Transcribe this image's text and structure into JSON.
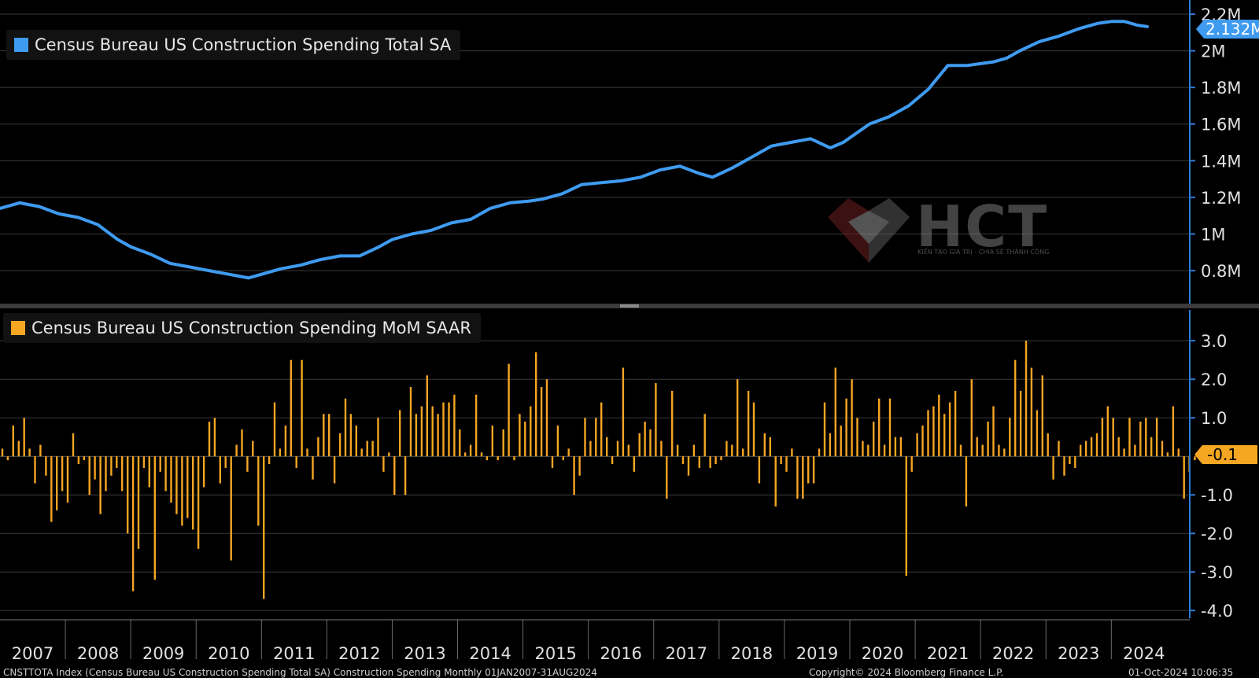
{
  "footer": {
    "left": "CNSTTOTA Index (Census Bureau US Construction Spending Total SA) Construction Spending  Monthly 01JAN2007-31AUG2024",
    "center": "Copyright© 2024 Bloomberg Finance L.P.",
    "right": "01-Oct-2024 10:06:35"
  },
  "watermark": {
    "text": "HCT",
    "tagline": "KIẾN TẠO GIÁ TRỊ - CHIA SẺ THÀNH CÔNG"
  },
  "colors": {
    "background": "#000000",
    "line": "#3f9bf0",
    "bar": "#f5a623",
    "grid": "#3a3a3a",
    "axis": "#2e7bd6"
  },
  "chart_data": [
    {
      "type": "line",
      "title": "Census Bureau US Construction Spending Total SA",
      "legend": "top-left",
      "grid": true,
      "ylim": [
        0.62,
        2.2
      ],
      "yticks": [
        0.8,
        1.0,
        1.2,
        1.4,
        1.6,
        1.8,
        2.0,
        2.2
      ],
      "ytick_labels": [
        "0.8M",
        "1M",
        "1.2M",
        "1.4M",
        "1.6M",
        "1.8M",
        "2M",
        "2.2M"
      ],
      "last_value_label": "2.132M",
      "series": [
        {
          "name": "Census Bureau US Construction Spending Total SA",
          "x": [
            2007.0,
            2007.3,
            2007.6,
            2007.9,
            2008.2,
            2008.5,
            2008.8,
            2009.0,
            2009.3,
            2009.6,
            2009.9,
            2010.2,
            2010.5,
            2010.8,
            2011.1,
            2011.3,
            2011.6,
            2011.9,
            2012.2,
            2012.5,
            2012.8,
            2013.0,
            2013.3,
            2013.6,
            2013.9,
            2014.2,
            2014.5,
            2014.8,
            2015.1,
            2015.3,
            2015.6,
            2015.9,
            2016.2,
            2016.5,
            2016.8,
            2017.1,
            2017.4,
            2017.7,
            2017.9,
            2018.2,
            2018.5,
            2018.8,
            2019.1,
            2019.4,
            2019.7,
            2019.9,
            2020.1,
            2020.3,
            2020.6,
            2020.9,
            2021.2,
            2021.5,
            2021.8,
            2022.0,
            2022.2,
            2022.4,
            2022.6,
            2022.9,
            2023.2,
            2023.5,
            2023.8,
            2024.0,
            2024.2,
            2024.4,
            2024.55
          ],
          "values": [
            1.14,
            1.17,
            1.15,
            1.11,
            1.09,
            1.05,
            0.97,
            0.93,
            0.89,
            0.84,
            0.82,
            0.8,
            0.78,
            0.76,
            0.79,
            0.81,
            0.83,
            0.86,
            0.88,
            0.88,
            0.93,
            0.97,
            1.0,
            1.02,
            1.06,
            1.08,
            1.14,
            1.17,
            1.18,
            1.19,
            1.22,
            1.27,
            1.28,
            1.29,
            1.31,
            1.35,
            1.37,
            1.33,
            1.31,
            1.36,
            1.42,
            1.48,
            1.5,
            1.52,
            1.47,
            1.5,
            1.55,
            1.6,
            1.64,
            1.7,
            1.79,
            1.92,
            1.92,
            1.93,
            1.94,
            1.96,
            2.0,
            2.05,
            2.08,
            2.12,
            2.15,
            2.16,
            2.16,
            2.14,
            2.132
          ]
        }
      ]
    },
    {
      "type": "bar",
      "title": "Census Bureau US Construction Spending MoM SAAR",
      "legend": "top-left",
      "grid": true,
      "ylim": [
        -4.2,
        3.8
      ],
      "yticks": [
        3.0,
        2.0,
        1.0,
        -1.0,
        -2.0,
        -3.0,
        -4.0
      ],
      "ytick_labels": [
        "3.0",
        "2.0",
        "1.0",
        "-1.0",
        "-2.0",
        "-3.0",
        "-4.0"
      ],
      "last_value_label": "-0.1",
      "x_start": 2007.0,
      "x_step": 0.0833,
      "series": [
        {
          "name": "Census Bureau US Construction Spending MoM SAAR",
          "values": [
            0.2,
            -0.1,
            0.8,
            0.4,
            1.0,
            0.2,
            -0.7,
            0.3,
            -0.5,
            -1.7,
            -1.4,
            -0.9,
            -1.2,
            0.6,
            -0.2,
            -0.1,
            -1.0,
            -0.6,
            -1.5,
            -0.9,
            -0.5,
            -0.3,
            -0.9,
            -2.0,
            -3.5,
            -2.4,
            -0.3,
            -0.8,
            -3.2,
            -0.4,
            -0.9,
            -1.2,
            -1.5,
            -1.8,
            -1.6,
            -1.9,
            -2.4,
            -0.8,
            0.9,
            1.0,
            -0.7,
            -0.3,
            -2.7,
            0.3,
            0.7,
            -0.4,
            0.4,
            -1.8,
            -3.7,
            -0.2,
            1.4,
            0.2,
            0.8,
            2.5,
            -0.3,
            2.5,
            0.2,
            -0.6,
            0.5,
            1.1,
            1.1,
            -0.7,
            0.6,
            1.5,
            1.1,
            0.8,
            0.2,
            0.4,
            0.4,
            1.0,
            -0.4,
            0.1,
            -1.0,
            1.2,
            -1.0,
            1.8,
            1.1,
            1.3,
            2.1,
            1.3,
            1.1,
            1.4,
            1.4,
            1.6,
            0.7,
            0.1,
            0.3,
            1.6,
            0.1,
            -0.1,
            0.8,
            -0.1,
            0.7,
            2.4,
            -0.1,
            1.1,
            0.9,
            1.3,
            2.7,
            1.8,
            2.0,
            -0.3,
            0.8,
            -0.1,
            0.2,
            -1.0,
            -0.5,
            1.0,
            0.4,
            1.0,
            1.4,
            0.5,
            -0.2,
            0.4,
            2.3,
            0.3,
            -0.4,
            0.6,
            0.9,
            0.7,
            1.9,
            0.4,
            -1.1,
            1.7,
            0.3,
            -0.2,
            -0.5,
            0.3,
            -0.3,
            1.1,
            -0.3,
            -0.2,
            -0.1,
            0.4,
            0.3,
            2.0,
            0.2,
            1.7,
            1.4,
            -0.7,
            0.6,
            0.5,
            -1.3,
            -0.2,
            -0.4,
            0.2,
            -1.1,
            -1.1,
            -0.7,
            -0.7,
            0.2,
            1.4,
            0.6,
            2.3,
            0.8,
            1.5,
            2.0,
            1.0,
            0.4,
            0.3,
            0.9,
            1.5,
            0.3,
            1.5,
            0.5,
            0.5,
            -3.1,
            -0.4,
            0.6,
            0.8,
            1.2,
            1.3,
            1.6,
            1.1,
            1.4,
            1.7,
            0.3,
            -1.3,
            2.0,
            0.5,
            0.3,
            0.9,
            1.3,
            0.3,
            0.2,
            1.0,
            2.5,
            1.7,
            3.0,
            2.3,
            1.2,
            2.1,
            0.6,
            -0.6,
            0.4,
            -0.5,
            -0.2,
            -0.3,
            0.3,
            0.4,
            0.5,
            0.6,
            1.0,
            1.3,
            1.0,
            0.5,
            0.2,
            1.0,
            0.3,
            0.9,
            1.0,
            0.5,
            1.0,
            0.4,
            0.1,
            1.3,
            0.2,
            -1.1,
            -0.4,
            -0.1
          ]
        }
      ]
    }
  ],
  "x_axis": {
    "year_labels": [
      "2007",
      "2008",
      "2009",
      "2010",
      "2011",
      "2012",
      "2013",
      "2014",
      "2015",
      "2016",
      "2017",
      "2018",
      "2019",
      "2020",
      "2021",
      "2022",
      "2023",
      "2024"
    ]
  }
}
